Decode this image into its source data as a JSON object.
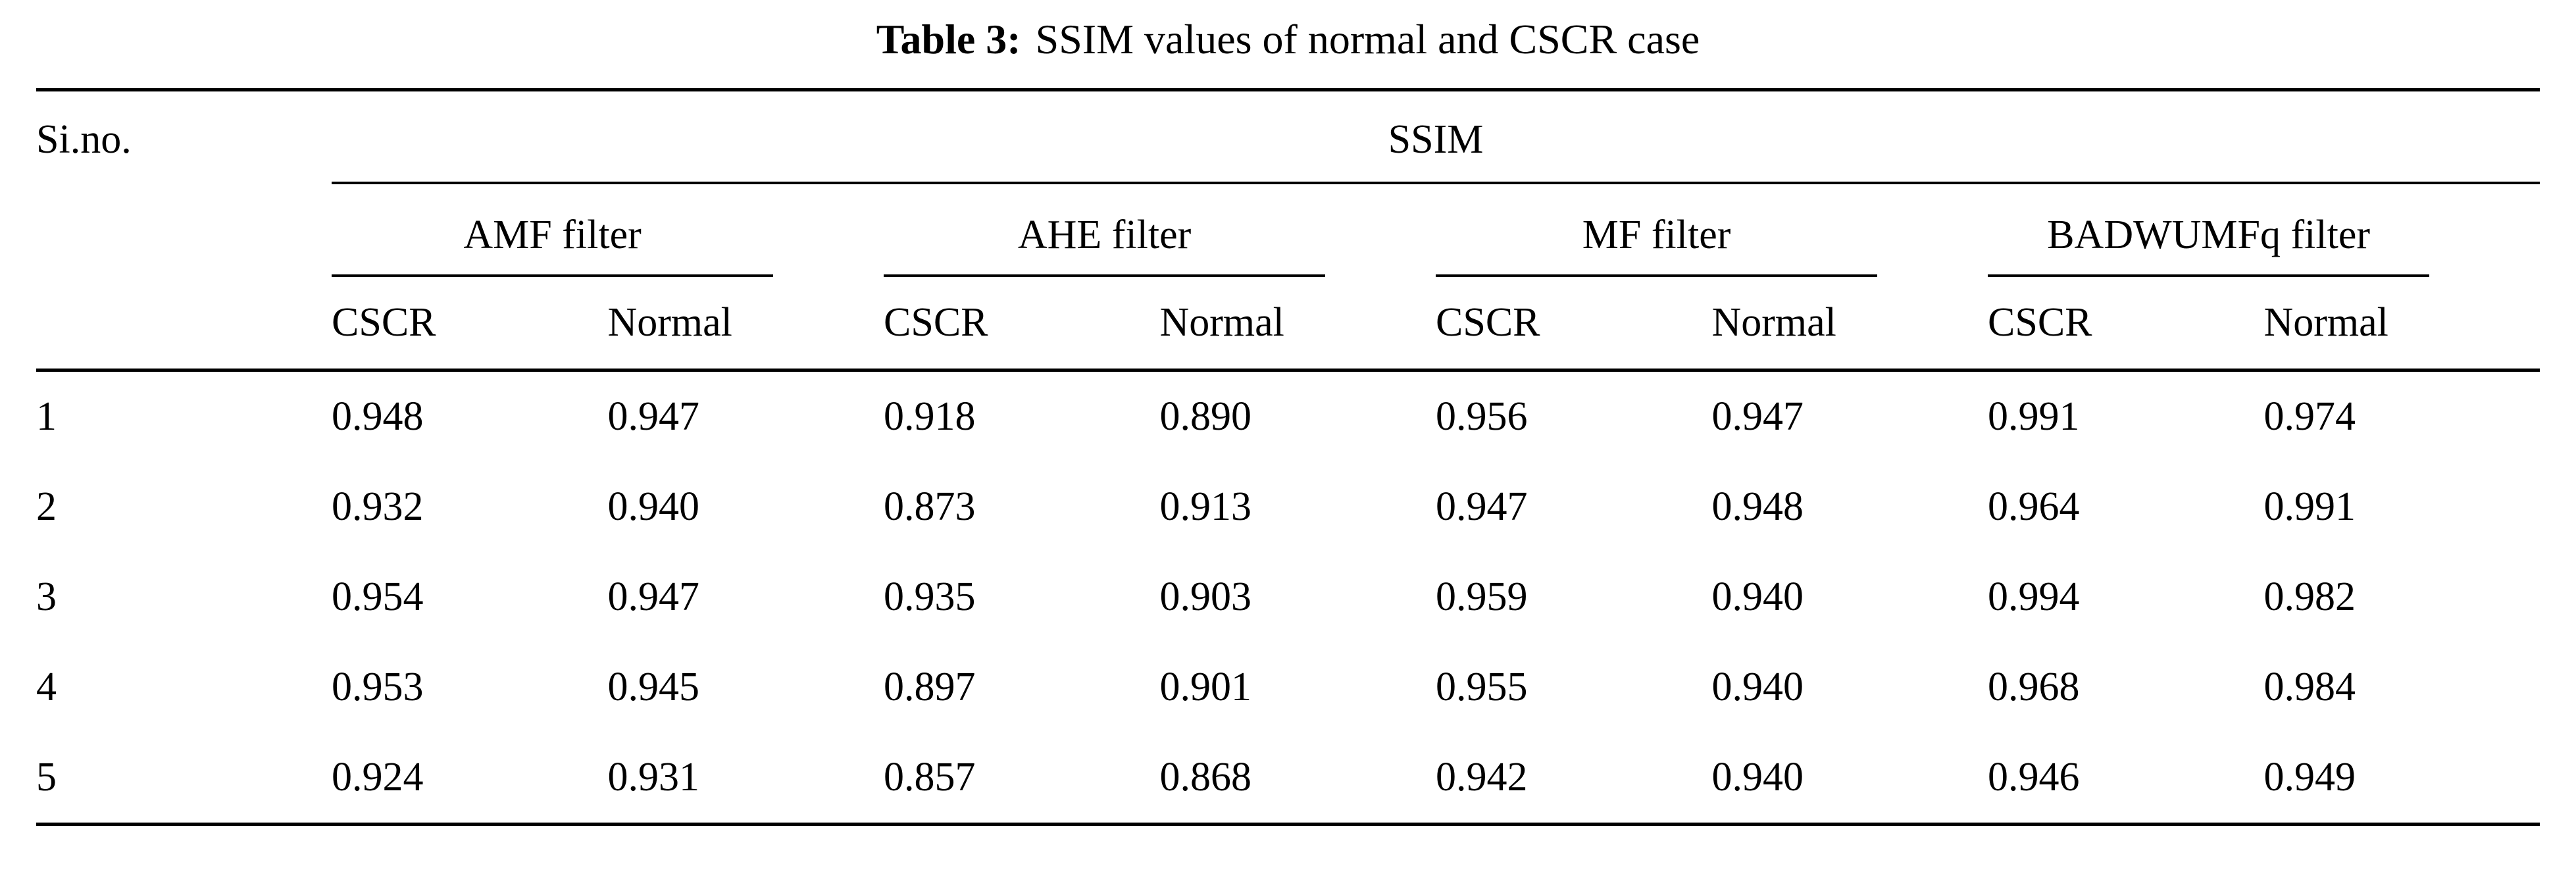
{
  "caption": {
    "label": "Table 3:",
    "text": "SSIM values of normal and CSCR case"
  },
  "table": {
    "corner_header": "Si.no.",
    "span_header": "SSIM",
    "groups": [
      "AMF filter",
      "AHE filter",
      "MF filter",
      "BADWUMFq filter"
    ],
    "sub_headers": [
      "CSCR",
      "Normal"
    ],
    "rows": [
      {
        "si_no": "1",
        "values": [
          "0.948",
          "0.947",
          "0.918",
          "0.890",
          "0.956",
          "0.947",
          "0.991",
          "0.974"
        ]
      },
      {
        "si_no": "2",
        "values": [
          "0.932",
          "0.940",
          "0.873",
          "0.913",
          "0.947",
          "0.948",
          "0.964",
          "0.991"
        ]
      },
      {
        "si_no": "3",
        "values": [
          "0.954",
          "0.947",
          "0.935",
          "0.903",
          "0.959",
          "0.940",
          "0.994",
          "0.982"
        ]
      },
      {
        "si_no": "4",
        "values": [
          "0.953",
          "0.945",
          "0.897",
          "0.901",
          "0.955",
          "0.940",
          "0.968",
          "0.984"
        ]
      },
      {
        "si_no": "5",
        "values": [
          "0.924",
          "0.931",
          "0.857",
          "0.868",
          "0.942",
          "0.940",
          "0.946",
          "0.949"
        ]
      }
    ]
  },
  "colors": {
    "text": "#000000",
    "background": "#ffffff",
    "rule": "#000000"
  }
}
